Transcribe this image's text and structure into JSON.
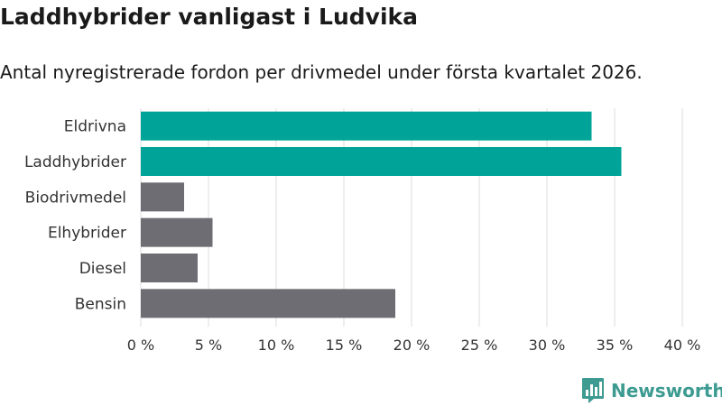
{
  "title": "Laddhybrider vanligast i Ludvika",
  "subtitle": "Antal nyregistrerade fordon per drivmedel under första kvartalet 2026.",
  "brand": "Newsworthy",
  "colors": {
    "highlight": "#00a398",
    "default": "#6e6d74",
    "grid": "#dddddd",
    "brand": "#3d9b92"
  },
  "chart_data": {
    "type": "bar",
    "orientation": "horizontal",
    "categories": [
      "Eldrivna",
      "Laddhybrider",
      "Biodrivmedel",
      "Elhybrider",
      "Diesel",
      "Bensin"
    ],
    "values": [
      33.3,
      35.5,
      3.2,
      5.3,
      4.2,
      18.8
    ],
    "highlighted": [
      true,
      true,
      false,
      false,
      false,
      false
    ],
    "xlim": [
      0,
      40
    ],
    "xticks": [
      0,
      5,
      10,
      15,
      20,
      25,
      30,
      35,
      40
    ],
    "tick_suffix": " %",
    "grid": true,
    "legend": false
  }
}
